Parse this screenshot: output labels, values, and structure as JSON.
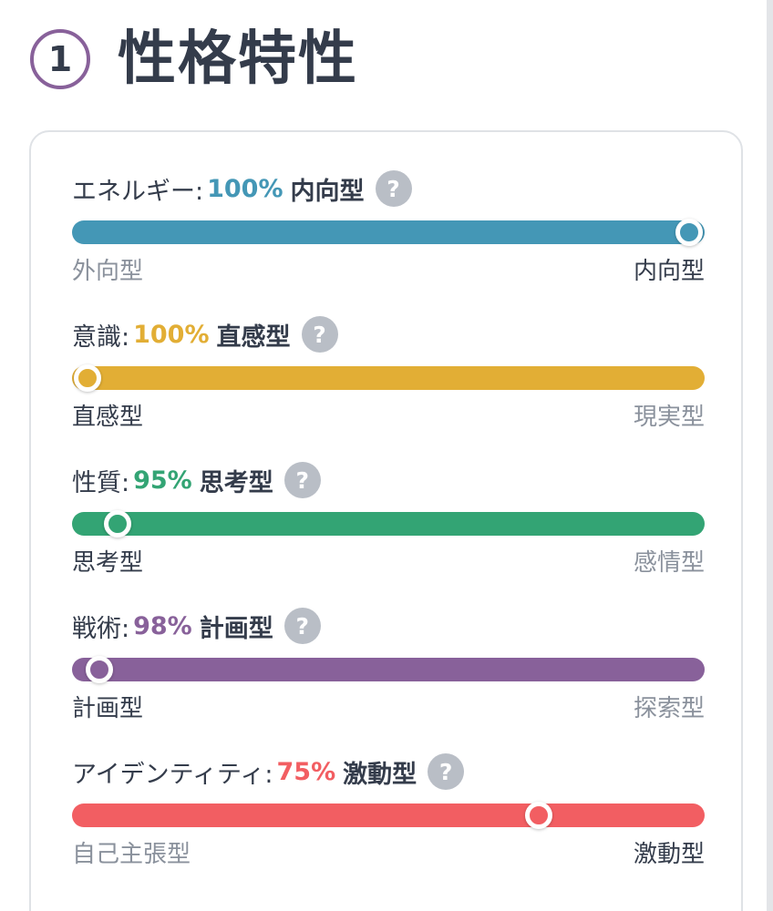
{
  "section": {
    "number": "1",
    "title": "性格特性"
  },
  "help_label": "?",
  "traits": [
    {
      "label": "エネルギー:",
      "percent": "100%",
      "type": "内向型",
      "color": "#4497b6",
      "position": 1.0,
      "left_end": "外向型",
      "right_end": "内向型",
      "active_side": "right"
    },
    {
      "label": "意識:",
      "percent": "100%",
      "type": "直感型",
      "color": "#e2ae35",
      "position": 0.0,
      "left_end": "直感型",
      "right_end": "現実型",
      "active_side": "left"
    },
    {
      "label": "性質:",
      "percent": "95%",
      "type": "思考型",
      "color": "#33a474",
      "position": 0.05,
      "left_end": "思考型",
      "right_end": "感情型",
      "active_side": "left"
    },
    {
      "label": "戦術:",
      "percent": "98%",
      "type": "計画型",
      "color": "#88619a",
      "position": 0.02,
      "left_end": "計画型",
      "right_end": "探索型",
      "active_side": "left"
    },
    {
      "label": "アイデンティティ:",
      "percent": "75%",
      "type": "激動型",
      "color": "#f25e62",
      "position": 0.75,
      "left_end": "自己主張型",
      "right_end": "激動型",
      "active_side": "right"
    }
  ]
}
